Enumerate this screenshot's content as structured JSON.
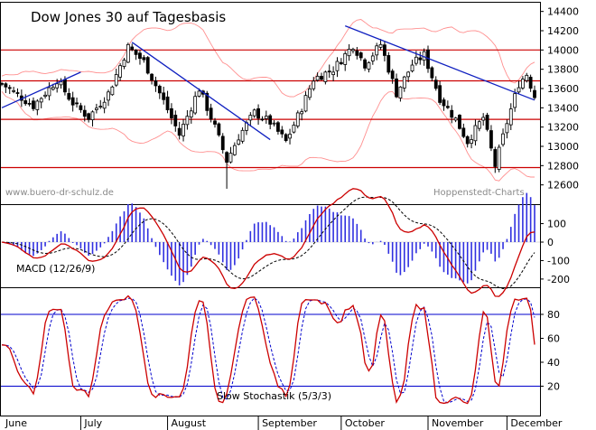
{
  "chart_data": [
    {
      "type": "candlestick",
      "title": "Dow Jones 30 auf Tagesbasis",
      "watermark_left": "www.buero-dr-schulz.de",
      "watermark_right": "Hoppenstedt-Charts",
      "ylim": [
        12400,
        14500
      ],
      "yticks": [
        12600,
        12800,
        13000,
        13200,
        13400,
        13600,
        13800,
        14000,
        14200,
        14400
      ],
      "horizontal_lines": [
        14000,
        13680,
        13280,
        12780
      ],
      "trendlines": [
        {
          "from": [
            "Jun-01",
            13400
          ],
          "to": [
            "Jun-30",
            13770
          ]
        },
        {
          "from": [
            "Jul-19",
            14080
          ],
          "to": [
            "Sep-10",
            13070
          ]
        },
        {
          "from": [
            "Oct-03",
            14250
          ],
          "to": [
            "Dec-12",
            13480
          ]
        }
      ],
      "grid": false,
      "x_months": [
        "June",
        "July",
        "August",
        "September",
        "October",
        "November",
        "December"
      ],
      "colors": {
        "up": "#ffffff",
        "down": "#000000",
        "bollinger": "#ff9090",
        "trend": "#1020c0",
        "hline": "#cc0000"
      }
    },
    {
      "type": "line",
      "label": "MACD (12/26/9)",
      "ylim": [
        -260,
        190
      ],
      "yticks": [
        100,
        0,
        -100,
        -200
      ],
      "series": [
        {
          "role": "macd",
          "color": "#cc0000"
        },
        {
          "role": "signal",
          "color": "#000000",
          "dashed": true
        },
        {
          "role": "histogram",
          "color": "#3030e0"
        }
      ],
      "approx_values": {
        "Jul-20": 120,
        "Aug-15": -170,
        "Oct-12": 170,
        "Nov-20": -200,
        "Dec-12": 40
      }
    },
    {
      "type": "line",
      "label": "Slow Stochastik (5/3/3)",
      "ylim": [
        0,
        100
      ],
      "yticks": [
        20,
        40,
        60,
        80
      ],
      "reference_lines": [
        20,
        80
      ],
      "series": [
        {
          "role": "%K",
          "color": "#cc0000"
        },
        {
          "role": "%D",
          "color": "#0000cc",
          "dashed": true
        }
      ]
    }
  ],
  "x_axis_labels": [
    "June",
    "July",
    "August",
    "September",
    "October",
    "November",
    "December"
  ]
}
